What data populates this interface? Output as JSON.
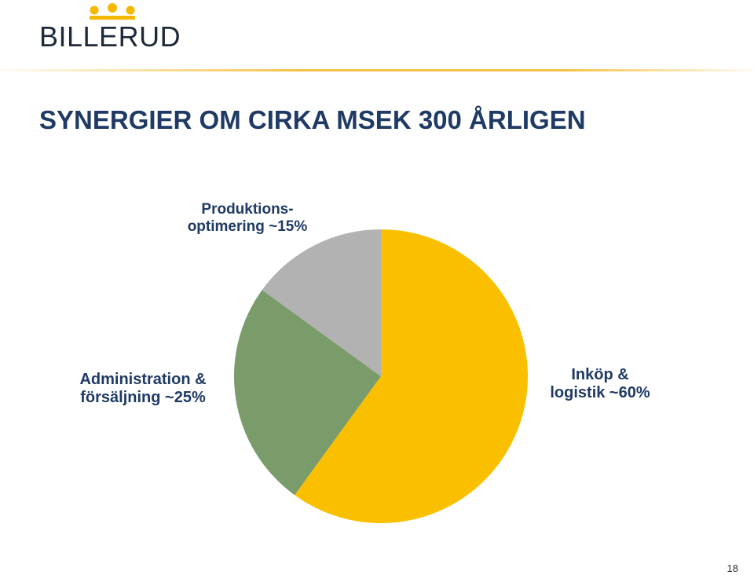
{
  "header": {
    "logo_text": "BILLERUD",
    "title": "SYNERGIER OM CIRKA MSEK 300 ÅRLIGEN"
  },
  "colors": {
    "logo_gold": "#f5b800",
    "title_blue": "#1f3a64"
  },
  "chart_data": {
    "type": "pie",
    "title": "SYNERGIER OM CIRKA MSEK 300 ÅRLIGEN",
    "slices": [
      {
        "label_line1": "Inköp &",
        "label_line2": "logistik ~60%",
        "value": 60,
        "color": "#fac000"
      },
      {
        "label_line1": "Administration &",
        "label_line2": "försäljning ~25%",
        "value": 25,
        "color": "#7a9c6a"
      },
      {
        "label_line1": "Produktions-",
        "label_line2": "optimering ~15%",
        "value": 15,
        "color": "#b2b2b2"
      }
    ]
  },
  "footer": {
    "page_number": "18"
  }
}
